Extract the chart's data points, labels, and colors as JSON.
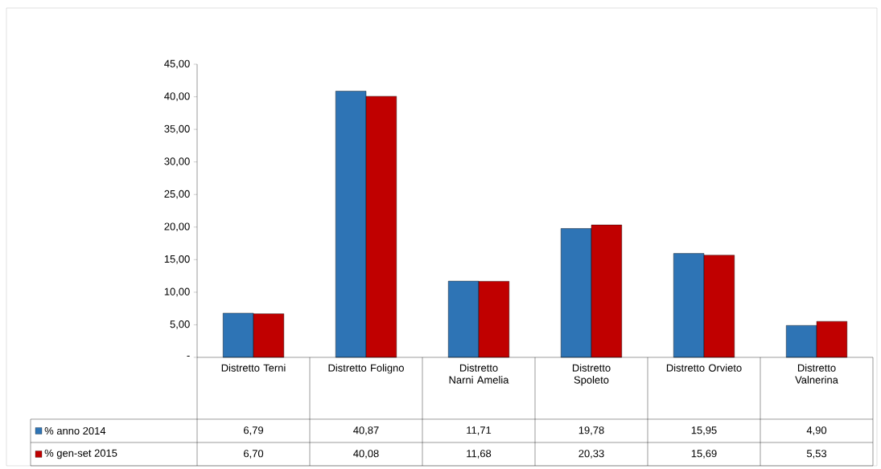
{
  "chart_data": {
    "type": "bar",
    "categories": [
      "Distretto Terni",
      "Distretto Foligno",
      "Distretto Narni Amelia",
      "Distretto Spoleto",
      "Distretto Orvieto",
      "Distretto Valnerina"
    ],
    "series": [
      {
        "name": "% anno 2014",
        "color": "#2e74b5",
        "values": [
          6.79,
          40.87,
          11.71,
          19.78,
          15.95,
          4.9
        ],
        "value_labels": [
          "6,79",
          "40,87",
          "11,71",
          "19,78",
          "15,95",
          "4,90"
        ]
      },
      {
        "name": "% gen-set 2015",
        "color": "#c00000",
        "values": [
          6.7,
          40.08,
          11.68,
          20.33,
          15.69,
          5.53
        ],
        "value_labels": [
          "6,70",
          "40,08",
          "11,68",
          "20,33",
          "15,69",
          "5,53"
        ]
      }
    ],
    "ylim": [
      0,
      45
    ],
    "yticks": [
      {
        "value": 0,
        "label": "-"
      },
      {
        "value": 5,
        "label": "5,00"
      },
      {
        "value": 10,
        "label": "10,00"
      },
      {
        "value": 15,
        "label": "15,00"
      },
      {
        "value": 20,
        "label": "20,00"
      },
      {
        "value": 25,
        "label": "25,00"
      },
      {
        "value": 30,
        "label": "30,00"
      },
      {
        "value": 35,
        "label": "35,00"
      },
      {
        "value": 40,
        "label": "40,00"
      },
      {
        "value": 45,
        "label": "45,00"
      }
    ],
    "grid": false,
    "legend": "bottom left"
  }
}
